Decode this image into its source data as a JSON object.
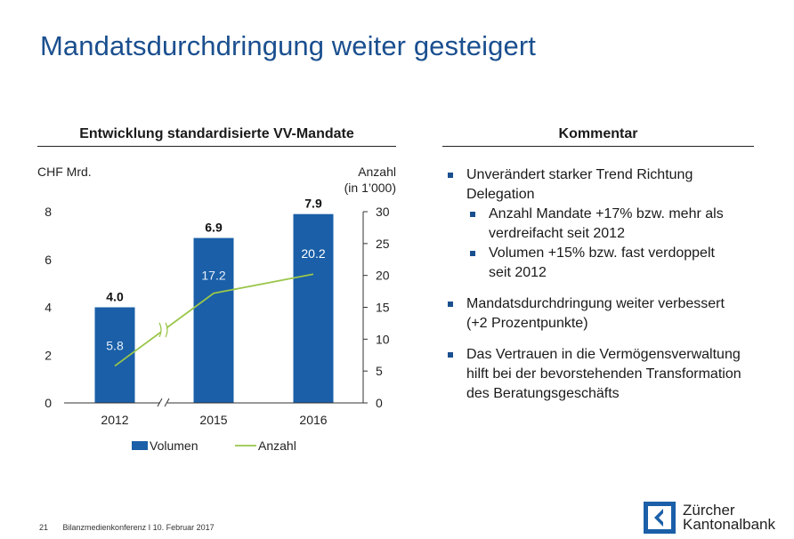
{
  "page": {
    "title": "Mandatsdurchdringung weiter gesteigert",
    "footer_page": "21",
    "footer_text": "Bilanzmedienkonferenz I 10. Februar 2017",
    "logo_line1": "Zürcher",
    "logo_line2": "Kantonalbank",
    "colors": {
      "title": "#1a4f8f",
      "bar": "#1a5fa8",
      "line": "#9ac64a",
      "bullet": "#1a4f8f"
    }
  },
  "chart_header": "Entwicklung standardisierte VV-Mandate",
  "comment": {
    "header": "Kommentar",
    "items": [
      {
        "level": 1,
        "lines": [
          "Unverändert starker Trend Richtung",
          "Delegation"
        ]
      },
      {
        "level": 2,
        "lines": [
          "Anzahl Mandate +17% bzw. mehr als",
          "verdreifacht seit 2012"
        ]
      },
      {
        "level": 2,
        "lines": [
          "Volumen +15% bzw. fast verdoppelt",
          "seit 2012"
        ]
      },
      {
        "level": 1,
        "lines": [
          "Mandatsdurchdringung weiter verbessert",
          "(+2 Prozentpunkte)"
        ],
        "gap_before": true
      },
      {
        "level": 1,
        "lines": [
          "Das Vertrauen in die Vermögensverwaltung",
          "hilft bei der bevorstehenden Transformation",
          "des Beratungsgeschäfts"
        ],
        "gap_before": true
      }
    ]
  },
  "chart_data": {
    "type": "bar",
    "categories": [
      "2012",
      "2015",
      "2016"
    ],
    "series": [
      {
        "name": "Volumen",
        "kind": "bar",
        "axis": "left",
        "values": [
          4.0,
          6.9,
          7.9
        ],
        "labels": [
          "4.0",
          "6.9",
          "7.9"
        ]
      },
      {
        "name": "Anzahl",
        "kind": "line",
        "axis": "right",
        "values": [
          5.8,
          17.2,
          20.2
        ],
        "labels": [
          "5.8",
          "17.2",
          "20.2"
        ]
      }
    ],
    "y_left": {
      "label": "CHF Mrd.",
      "range": [
        0,
        8
      ],
      "ticks": [
        "0",
        "2",
        "4",
        "6",
        "8"
      ]
    },
    "y_right": {
      "label_line1": "Anzahl",
      "label_line2": "(in 1’000)",
      "range": [
        0,
        30
      ],
      "ticks": [
        "0",
        "5",
        "10",
        "15",
        "20",
        "25",
        "30"
      ]
    },
    "axis_break": true,
    "grid": false,
    "legend": "bottom"
  }
}
